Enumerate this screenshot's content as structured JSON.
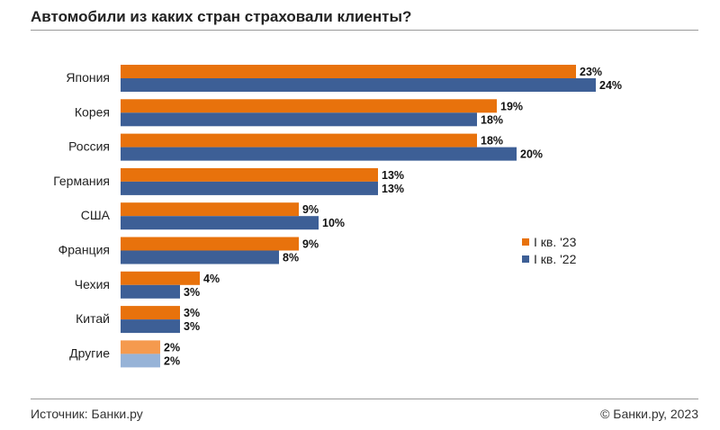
{
  "title": "Автомобили из каких стран страховали клиенты?",
  "footer": {
    "source": "Источник: Банки.ру",
    "copyright": "© Банки.ру, 2023"
  },
  "colors": {
    "series_2023": "#E8720C",
    "series_2022": "#3D5F96",
    "other_2023": "#F59A4E",
    "other_2022": "#97B3D7"
  },
  "chart_data": {
    "type": "bar",
    "orientation": "horizontal",
    "unit": "%",
    "categories": [
      "Япония",
      "Корея",
      "Россия",
      "Германия",
      "США",
      "Франция",
      "Чехия",
      "Китай",
      "Другие"
    ],
    "series": [
      {
        "name": "I кв. '23",
        "values": [
          23,
          19,
          18,
          13,
          9,
          9,
          4,
          3,
          2
        ]
      },
      {
        "name": "I кв. '22",
        "values": [
          24,
          18,
          20,
          13,
          10,
          8,
          3,
          3,
          2
        ]
      }
    ],
    "value_labels": [
      [
        "23%",
        "19%",
        "18%",
        "13%",
        "9%",
        "9%",
        "4%",
        "3%",
        "2%"
      ],
      [
        "24%",
        "18%",
        "20%",
        "13%",
        "10%",
        "8%",
        "3%",
        "3%",
        "2%"
      ]
    ],
    "legend": "right",
    "grid": false
  }
}
